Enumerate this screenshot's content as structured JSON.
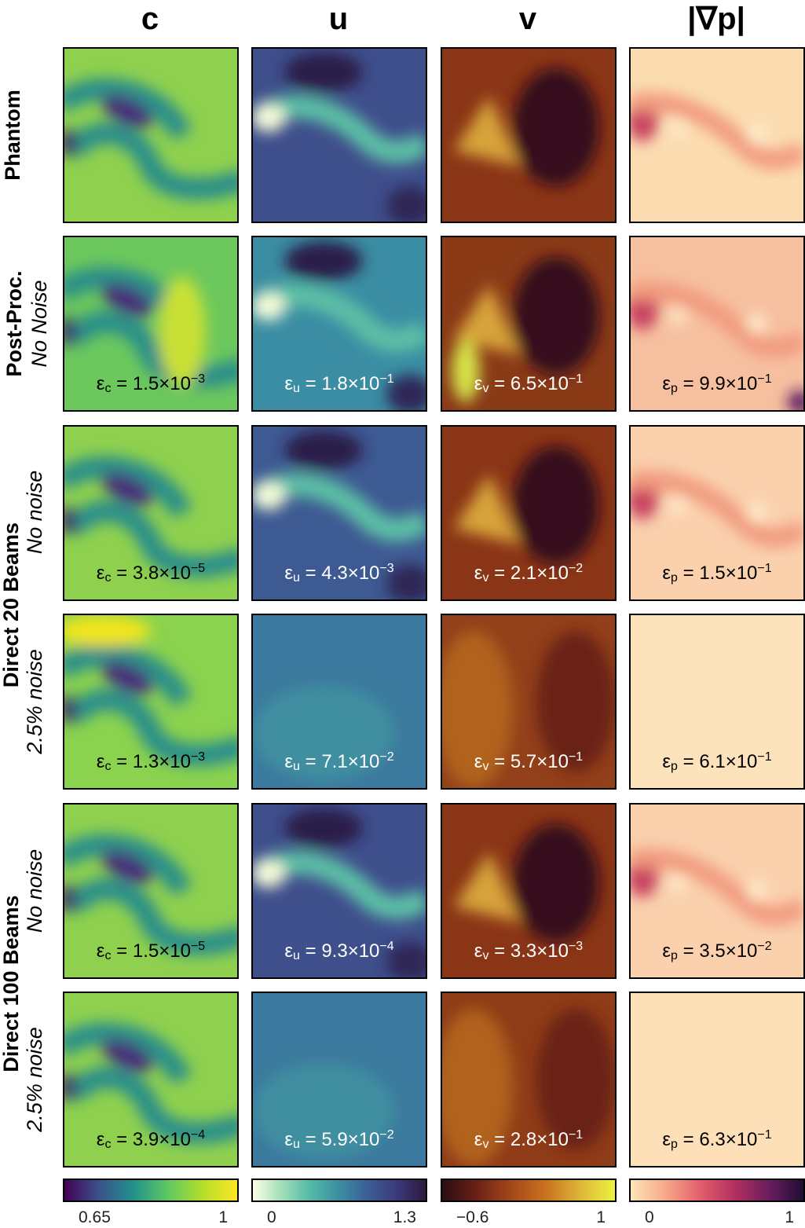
{
  "columns": [
    {
      "title": "c",
      "colormap": [
        "#440154",
        "#3b528b",
        "#21918c",
        "#5ec962",
        "#b5de2b",
        "#fde725"
      ],
      "ticks": [
        "0.65",
        "1"
      ]
    },
    {
      "title": "u",
      "colormap": [
        "#fcffe4",
        "#a0dfb9",
        "#52b9a6",
        "#3b8ea1",
        "#3a5d96",
        "#3b3a79",
        "#2b1a40"
      ],
      "ticks": [
        "0",
        "1.3"
      ]
    },
    {
      "title": "v",
      "colormap": [
        "#2a0d12",
        "#6b2016",
        "#a4481a",
        "#c9721f",
        "#deb63a",
        "#ebf23d"
      ],
      "ticks": [
        "−0.6",
        "1"
      ]
    },
    {
      "title": "|∇p|",
      "colormap": [
        "#fde5b8",
        "#f7a98a",
        "#e25f6b",
        "#b2305f",
        "#6b1d5e",
        "#1e0d34"
      ],
      "ticks": [
        "0",
        "1"
      ]
    }
  ],
  "rows": [
    {
      "line1": "Phantom",
      "line2": "",
      "errors": []
    },
    {
      "line1": "Post-Proc.",
      "line2": "No Noise",
      "errors": [
        {
          "sym": "ε",
          "sub": "c",
          "mant": "1.5",
          "exp": "−3"
        },
        {
          "sym": "ε",
          "sub": "u",
          "mant": "1.8",
          "exp": "−1"
        },
        {
          "sym": "ε",
          "sub": "v",
          "mant": "6.5",
          "exp": "−1"
        },
        {
          "sym": "ε",
          "sub": "p",
          "mant": "9.9",
          "exp": "−1"
        }
      ]
    },
    {
      "line1": "",
      "line2": "No noise",
      "errors": [
        {
          "sym": "ε",
          "sub": "c",
          "mant": "3.8",
          "exp": "−5"
        },
        {
          "sym": "ε",
          "sub": "u",
          "mant": "4.3",
          "exp": "−3"
        },
        {
          "sym": "ε",
          "sub": "v",
          "mant": "2.1",
          "exp": "−2"
        },
        {
          "sym": "ε",
          "sub": "p",
          "mant": "1.5",
          "exp": "−1"
        }
      ]
    },
    {
      "line1": "",
      "line2": "2.5% noise",
      "errors": [
        {
          "sym": "ε",
          "sub": "c",
          "mant": "1.3",
          "exp": "−3"
        },
        {
          "sym": "ε",
          "sub": "u",
          "mant": "7.1",
          "exp": "−2"
        },
        {
          "sym": "ε",
          "sub": "v",
          "mant": "5.7",
          "exp": "−1"
        },
        {
          "sym": "ε",
          "sub": "p",
          "mant": "6.1",
          "exp": "−1"
        }
      ]
    },
    {
      "line1": "",
      "line2": "No noise",
      "errors": [
        {
          "sym": "ε",
          "sub": "c",
          "mant": "1.5",
          "exp": "−5"
        },
        {
          "sym": "ε",
          "sub": "u",
          "mant": "9.3",
          "exp": "−4"
        },
        {
          "sym": "ε",
          "sub": "v",
          "mant": "3.3",
          "exp": "−3"
        },
        {
          "sym": "ε",
          "sub": "p",
          "mant": "3.5",
          "exp": "−2"
        }
      ]
    },
    {
      "line1": "",
      "line2": "2.5% noise",
      "errors": [
        {
          "sym": "ε",
          "sub": "c",
          "mant": "3.9",
          "exp": "−4"
        },
        {
          "sym": "ε",
          "sub": "u",
          "mant": "5.9",
          "exp": "−2"
        },
        {
          "sym": "ε",
          "sub": "v",
          "mant": "2.8",
          "exp": "−1"
        },
        {
          "sym": "ε",
          "sub": "p",
          "mant": "6.3",
          "exp": "−1"
        }
      ]
    }
  ],
  "groups": [
    {
      "label": "Direct 20 Beams"
    },
    {
      "label": "Direct 100 Beams"
    }
  ]
}
